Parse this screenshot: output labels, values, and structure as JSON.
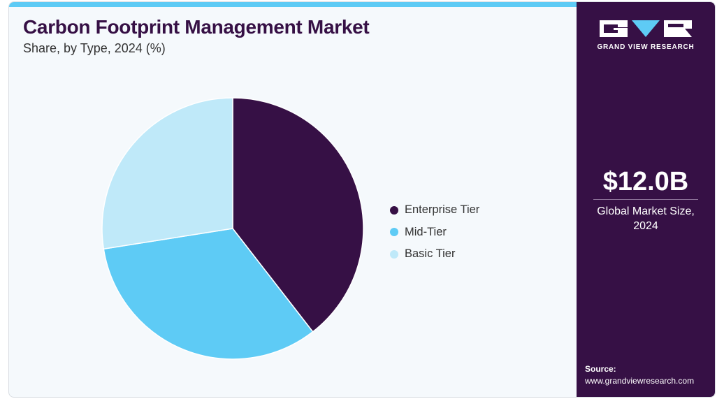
{
  "header": {
    "title": "Carbon Footprint Management Market",
    "subtitle": "Share, by Type, 2024 (%)"
  },
  "chart_data": {
    "type": "pie",
    "title": "Carbon Footprint Management Market",
    "subtitle": "Share, by Type, 2024 (%)",
    "categories": [
      "Enterprise Tier",
      "Mid-Tier",
      "Basic Tier"
    ],
    "values": [
      39.5,
      33.0,
      27.5
    ],
    "colors": [
      "#361045",
      "#5ecbf5",
      "#bfe9f9"
    ],
    "start_angle": "12 o'clock",
    "direction": "clockwise",
    "legend_position": "right"
  },
  "legend": {
    "items": [
      {
        "label": "Enterprise Tier",
        "color": "#361045"
      },
      {
        "label": "Mid-Tier",
        "color": "#5ecbf5"
      },
      {
        "label": "Basic Tier",
        "color": "#bfe9f9"
      }
    ]
  },
  "sidebar": {
    "logo_text": "GRAND VIEW RESEARCH",
    "market_value": "$12.0B",
    "market_label_line1": "Global Market Size,",
    "market_label_line2": "2024",
    "source_label": "Source:",
    "source_url": "www.grandviewresearch.com"
  },
  "theme": {
    "accent": "#5ecbf5",
    "brand": "#361045",
    "background": "#f5f9fc"
  }
}
